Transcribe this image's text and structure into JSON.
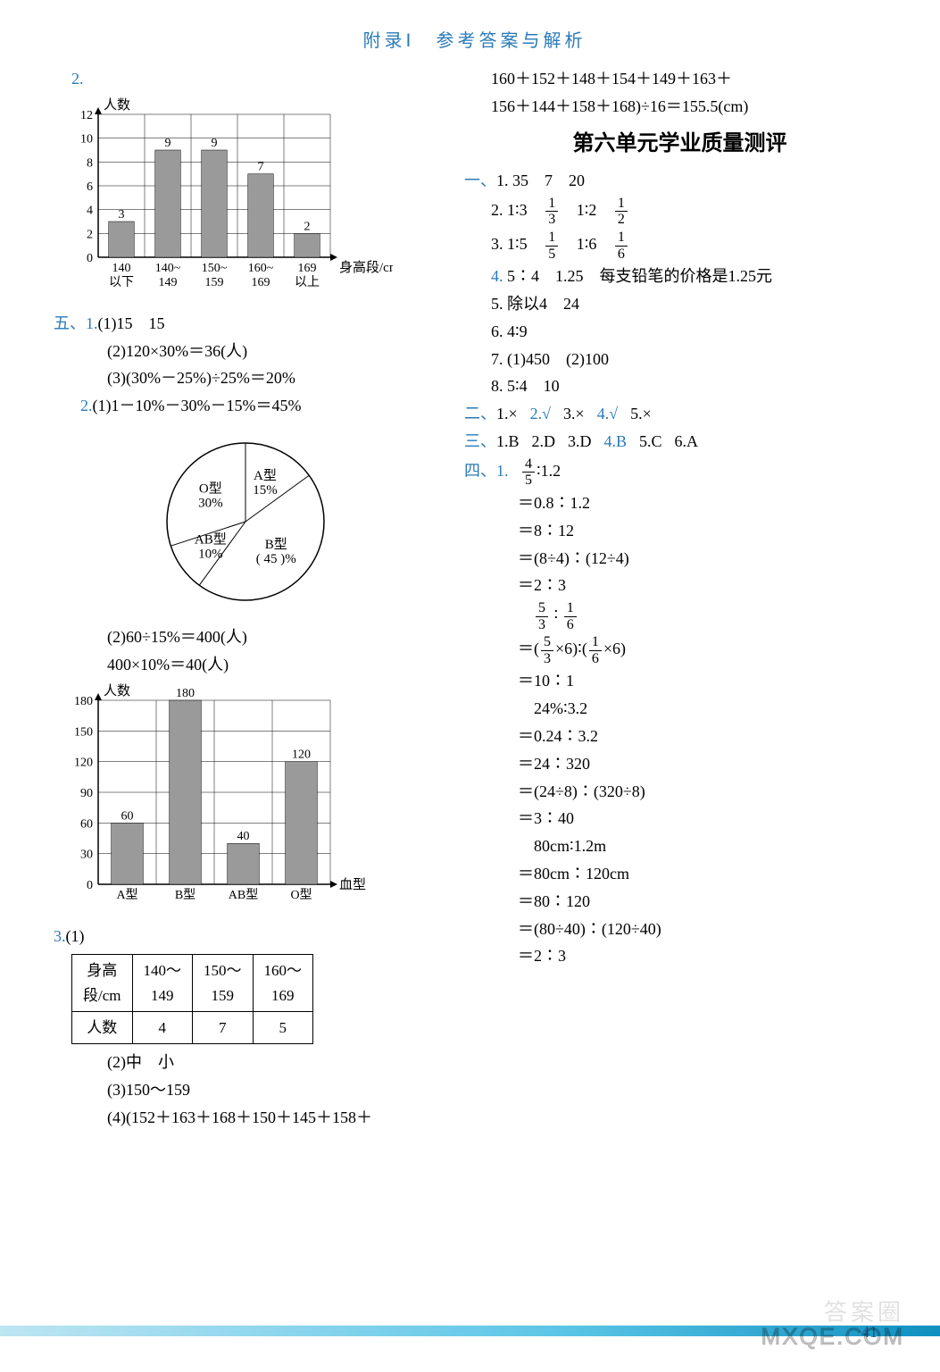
{
  "header": "附录Ⅰ　参考答案与解析",
  "pagenum": "41",
  "watermark2": "答案圈",
  "watermark": "MXQE.COM",
  "left": {
    "q2": "2.",
    "chart1": {
      "type": "bar",
      "y_label": "人数",
      "x_label": "身高段/cm",
      "categories_top": [
        "140",
        "140~",
        "150~",
        "160~",
        "169"
      ],
      "categories_bot": [
        "以下",
        "149",
        "159",
        "169",
        "以上"
      ],
      "values": [
        3,
        9,
        9,
        7,
        2
      ],
      "ylim": [
        0,
        12
      ],
      "ytick_step": 2,
      "bar_color": "#9a9a9a",
      "grid_color": "#000000",
      "background": "#ffffff",
      "label_fontsize": 14
    },
    "s5": {
      "label": "五、",
      "q1": {
        "label": "1.",
        "l1": "(1)15　15",
        "l2": "(2)120×30%＝36(人)",
        "l3": "(3)(30%－25%)÷25%＝20%"
      },
      "q2": {
        "label": "2.",
        "l1": "(1)1－10%－30%－15%＝45%",
        "pie": {
          "type": "pie",
          "slices": [
            {
              "label": "A型",
              "pct": "15%",
              "value": 15
            },
            {
              "label": "B型",
              "pct": "( 45 )%",
              "value": 45
            },
            {
              "label": "AB型",
              "pct": "10%",
              "value": 10
            },
            {
              "label": "O型",
              "pct": "30%",
              "value": 30
            }
          ],
          "stroke": "#000000",
          "fill": "#ffffff"
        },
        "l2": "(2)60÷15%＝400(人)",
        "l3": "400×10%＝40(人)",
        "chart2": {
          "type": "bar",
          "y_label": "人数",
          "x_label": "血型",
          "categories": [
            "A型",
            "B型",
            "AB型",
            "O型"
          ],
          "values": [
            60,
            180,
            40,
            120
          ],
          "ylim": [
            0,
            180
          ],
          "ytick_step": 30,
          "bar_color": "#9a9a9a",
          "grid_color": "#000000"
        }
      },
      "q3": {
        "label": "3.",
        "l1": "(1)",
        "table": {
          "columns": [
            "身高\n段/cm",
            "140～\n149",
            "150～\n159",
            "160～\n169"
          ],
          "rows": [
            [
              "人数",
              "4",
              "7",
              "5"
            ]
          ]
        },
        "l2": "(2)中　小",
        "l3": "(3)150～159",
        "l4": "(4)(152＋163＋168＋150＋145＋158＋"
      }
    }
  },
  "right": {
    "carry1": "160＋152＋148＋154＋149＋163＋",
    "carry2": "156＋144＋158＋168)÷16＝155.5(cm)",
    "title": "第六单元学业质量测评",
    "s1": {
      "label": "一、",
      "q1": "1. 35　7　20",
      "q2": {
        "pre": "2. 1∶3",
        "f1n": "1",
        "f1d": "3",
        "mid": "1∶2",
        "f2n": "1",
        "f2d": "2"
      },
      "q3": {
        "pre": "3. 1∶5",
        "f1n": "1",
        "f1d": "5",
        "mid": "1∶6",
        "f2n": "1",
        "f2d": "6"
      },
      "q4": {
        "blue": "4.",
        "text": "5∶4　1.25　每支铅笔的价格是1.25元"
      },
      "q5": "5. 除以4　24",
      "q6": "6. 4∶9",
      "q7": "7. (1)450　(2)100",
      "q8": "8. 5∶4　10"
    },
    "s2": {
      "label": "二、",
      "items": [
        "1.×",
        "2.√",
        "3.×",
        "4.√",
        "5.×"
      ],
      "blue_idx": [
        1,
        3
      ]
    },
    "s3": {
      "label": "三、",
      "items": [
        "1.B",
        "2.D",
        "3.D",
        "4.B",
        "5.C",
        "6.A"
      ],
      "blue_idx": [
        3
      ]
    },
    "s4": {
      "label": "四、",
      "q1": {
        "label": "1.",
        "head": {
          "fn": "4",
          "fd": "5",
          "tail": "∶1.2"
        },
        "steps": [
          "＝0.8∶1.2",
          "＝8∶12",
          "＝(8÷4)∶(12÷4)",
          "＝2∶3"
        ],
        "head2": {
          "f1n": "5",
          "f1d": "3",
          "sep": "∶",
          "f2n": "1",
          "f2d": "6"
        },
        "step2": {
          "pre": "＝(",
          "f1n": "5",
          "f1d": "3",
          "mid": "×6)∶(",
          "f2n": "1",
          "f2d": "6",
          "post": "×6)"
        },
        "steps2": [
          "＝10∶1"
        ],
        "head3": "24%∶3.2",
        "steps3": [
          "＝0.24∶3.2",
          "＝24∶320",
          "＝(24÷8)∶(320÷8)",
          "＝3∶40"
        ],
        "head4": "80cm∶1.2m",
        "steps4": [
          "＝80cm∶120cm",
          "＝80∶120",
          "＝(80÷40)∶(120÷40)",
          "＝2∶3"
        ]
      }
    }
  }
}
